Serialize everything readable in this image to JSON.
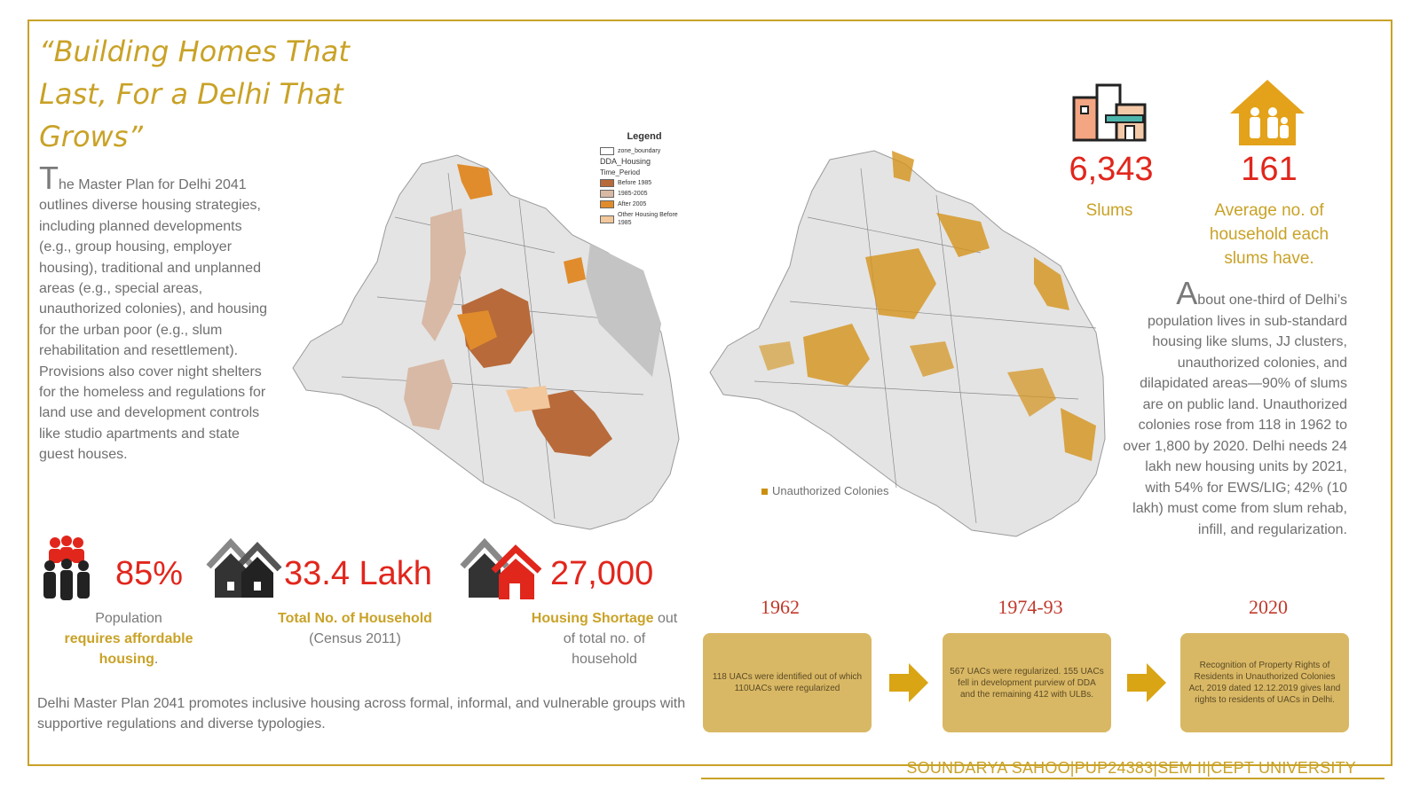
{
  "title": "“Building Homes That Last, For a Delhi That Grows”",
  "intro": {
    "dropcap": "T",
    "first_line": "he Master Plan for Delhi 2041",
    "rest": "outlines diverse housing strategies, including planned developments (e.g., group housing, employer housing), traditional and unplanned areas (e.g., special areas, unauthorized colonies), and housing for the urban poor (e.g., slum rehabilitation and resettlement). Provisions also cover night shelters for the homeless and regulations for land use and development controls like studio apartments and state guest houses."
  },
  "stats": [
    {
      "value": "85%",
      "caption_pre": "Population",
      "caption_bold": "requires affordable housing",
      "caption_post": "."
    },
    {
      "value": "33.4 Lakh",
      "caption_bold": "Total No. of Household",
      "caption_post": "(Census 2011)"
    },
    {
      "value": "27,000",
      "caption_bold": "Housing Shortage",
      "caption_post": " out of total no. of household"
    }
  ],
  "bottom_text": "Delhi Master Plan 2041 promotes inclusive housing across formal, informal, and vulnerable groups with supportive regulations and diverse typologies.",
  "legend": {
    "title": "Legend",
    "zone_boundary": "zone_boundary",
    "layer": "DDA_Housing",
    "field": "Time_Period",
    "items": [
      {
        "label": "Before 1985",
        "color": "#b86a3a"
      },
      {
        "label": "1985-2005",
        "color": "#d8b9a5"
      },
      {
        "label": "After 2005",
        "color": "#e08c2c"
      },
      {
        "label": "Other Housing Before 1985",
        "color": "#f2c79b"
      }
    ]
  },
  "uac_label": "Unauthorized Colonies",
  "slums": {
    "value": "6,343",
    "caption": "Slums"
  },
  "households": {
    "value": "161",
    "caption": "Average no. of household each slums have."
  },
  "right_para": {
    "dropcap": "A",
    "text": "bout one-third of Delhi’s population lives in sub-standard housing like slums, JJ clusters, unauthorized colonies, and dilapidated areas—90% of slums are on public land. Unauthorized colonies rose from 118 in 1962 to over 1,800 by 2020. Delhi needs 24 lakh new housing units by 2021, with 54% for EWS/LIG; 42% (10 lakh) must come from slum rehab, infill, and regularization."
  },
  "timeline": [
    {
      "year": "1962",
      "text": "118 UACs were identified out of which 110UACs were regularized"
    },
    {
      "year": "1974-93",
      "text": "567 UACs were regularized. 155 UACs fell in development purview of DDA and the remaining 412 with ULBs."
    },
    {
      "year": "2020",
      "text": "Recognition of Property Rights of Residents in Unauthorized Colonies Act, 2019 dated 12.12.2019 gives land rights to residents of UACs in Delhi."
    }
  ],
  "footer": "SOUNDARYA SAHOO|PUP24383|SEM II|CEPT UNIVERSITY",
  "colors": {
    "gold": "#c9a227",
    "red": "#e1261c",
    "box": "#d9b865",
    "map_grey": "#cfcfcf",
    "uac": "#d4921a"
  }
}
